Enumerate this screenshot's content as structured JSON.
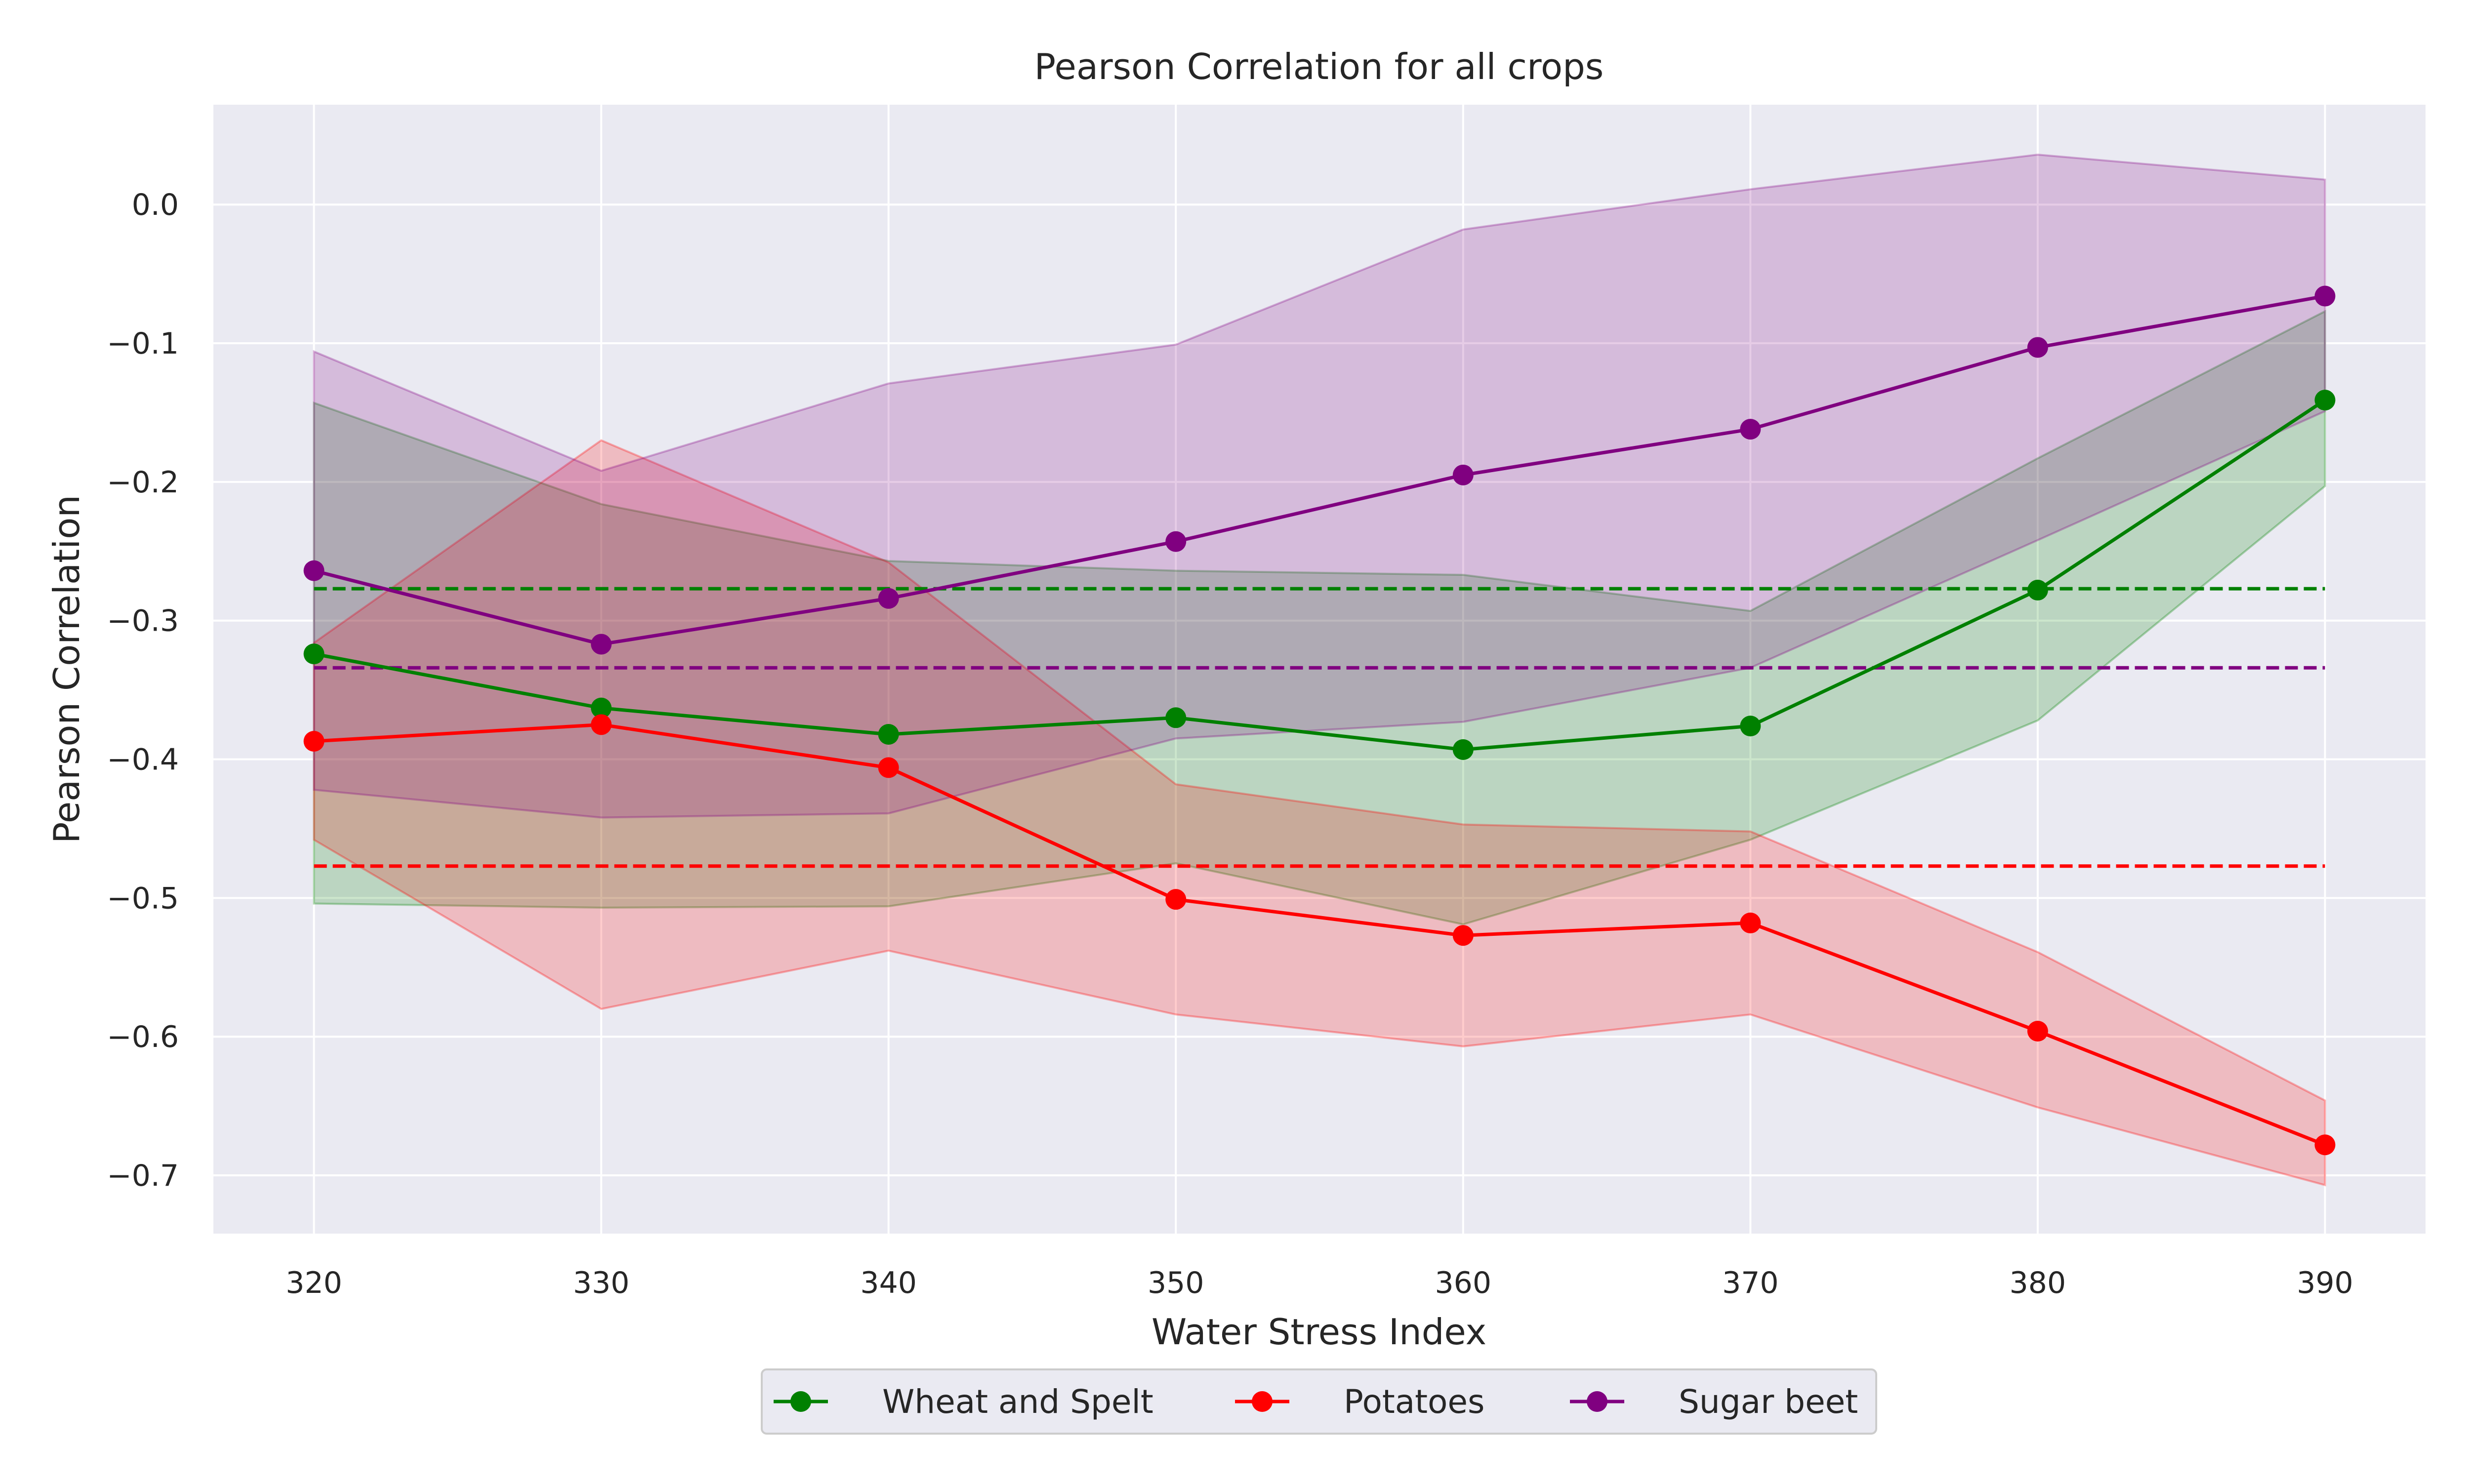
{
  "chart_data": {
    "type": "line",
    "title": "Pearson Correlation for all crops",
    "xlabel": "Water Stress Index",
    "ylabel": "Pearson Correlation",
    "x": [
      320,
      330,
      340,
      350,
      360,
      370,
      380,
      390
    ],
    "xlim": [
      316.5,
      393.5
    ],
    "ylim": [
      -0.742,
      0.072
    ],
    "xticks": [
      "320",
      "330",
      "340",
      "350",
      "360",
      "370",
      "380",
      "390"
    ],
    "yticks": [
      "0.0",
      "−0.1",
      "−0.2",
      "−0.3",
      "−0.4",
      "−0.5",
      "−0.6",
      "−0.7"
    ],
    "ytick_values": [
      0.0,
      -0.1,
      -0.2,
      -0.3,
      -0.4,
      -0.5,
      -0.6,
      -0.7
    ],
    "grid": true,
    "legend_position": "bottom-center",
    "series": [
      {
        "name": "Wheat and Spelt",
        "color": "#008000",
        "marker": "circle",
        "values": [
          -0.324,
          -0.363,
          -0.382,
          -0.37,
          -0.393,
          -0.376,
          -0.278,
          -0.141
        ],
        "band_upper": [
          -0.143,
          -0.216,
          -0.257,
          -0.264,
          -0.267,
          -0.293,
          -0.183,
          -0.077
        ],
        "band_lower": [
          -0.504,
          -0.507,
          -0.506,
          -0.475,
          -0.519,
          -0.458,
          -0.372,
          -0.203
        ],
        "mean": -0.277
      },
      {
        "name": "Potatoes",
        "color": "#ff0000",
        "marker": "circle",
        "values": [
          -0.387,
          -0.375,
          -0.406,
          -0.501,
          -0.527,
          -0.518,
          -0.596,
          -0.678
        ],
        "band_upper": [
          -0.316,
          -0.17,
          -0.258,
          -0.418,
          -0.447,
          -0.452,
          -0.539,
          -0.646
        ],
        "band_lower": [
          -0.458,
          -0.58,
          -0.538,
          -0.584,
          -0.607,
          -0.584,
          -0.651,
          -0.707
        ],
        "mean": -0.477
      },
      {
        "name": "Sugar beet",
        "color": "#800080",
        "marker": "circle",
        "values": [
          -0.264,
          -0.317,
          -0.284,
          -0.243,
          -0.195,
          -0.162,
          -0.103,
          -0.066
        ],
        "band_upper": [
          -0.106,
          -0.192,
          -0.129,
          -0.101,
          -0.018,
          0.011,
          0.036,
          0.018
        ],
        "band_lower": [
          -0.422,
          -0.442,
          -0.439,
          -0.385,
          -0.373,
          -0.334,
          -0.242,
          -0.149
        ],
        "mean": -0.334
      }
    ]
  }
}
